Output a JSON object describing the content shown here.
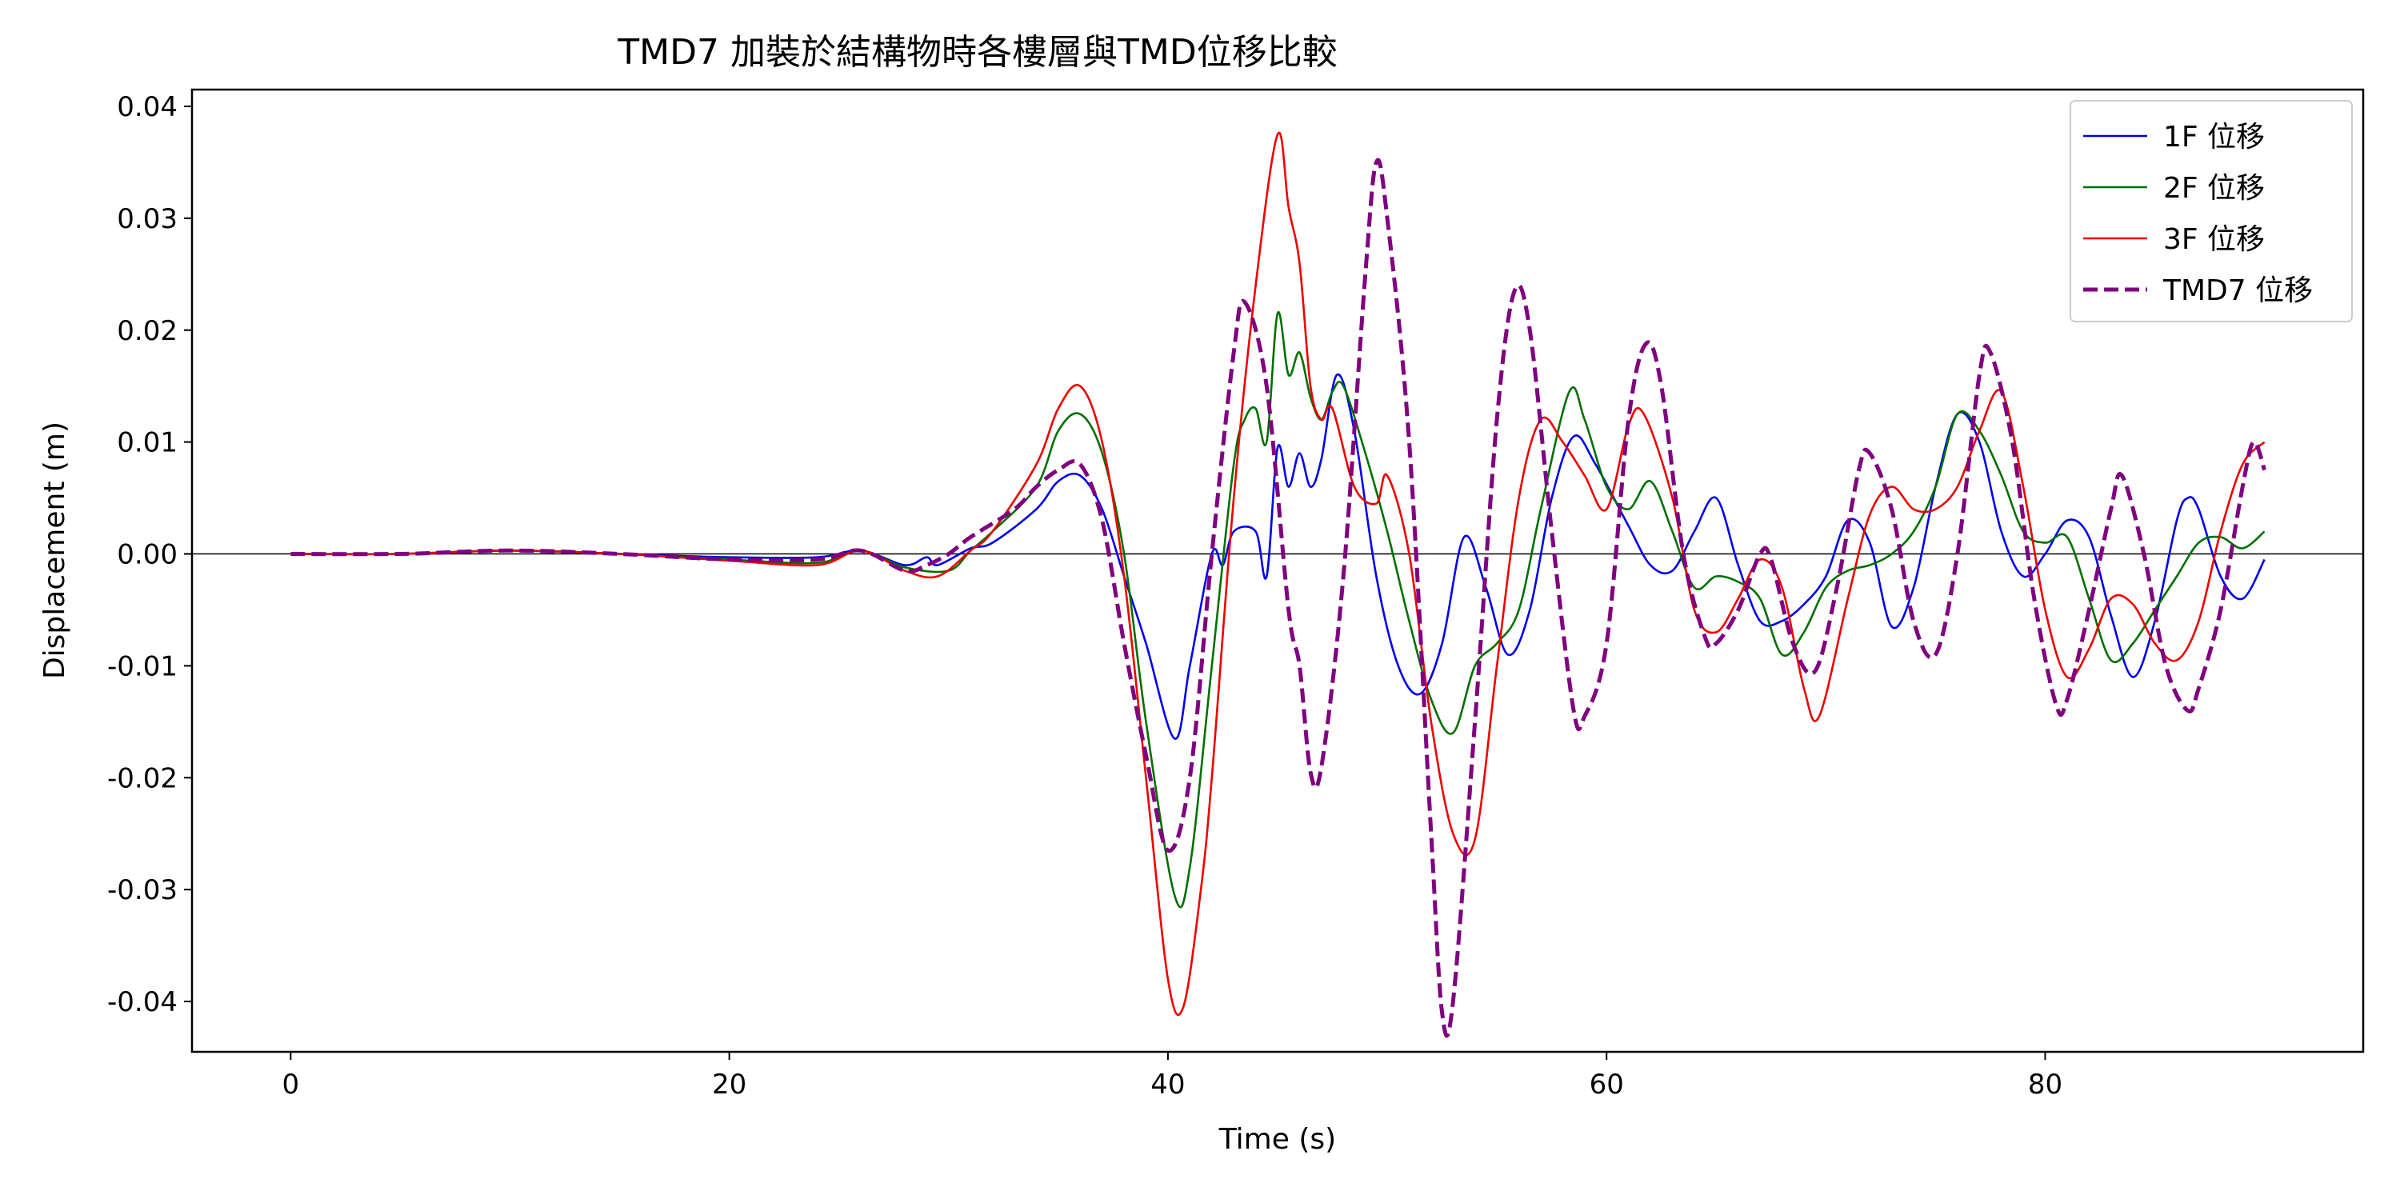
{
  "chart_data": {
    "type": "line",
    "title": "TMD7 加裝於結構物時各樓層與TMD位移比較",
    "xlabel": "Time (s)",
    "ylabel": "Displacement (m)",
    "xlim": [
      -4.5,
      94.5
    ],
    "ylim": [
      -0.0445,
      0.0415
    ],
    "xticks": [
      0,
      20,
      40,
      60,
      80
    ],
    "xtick_labels": [
      "0",
      "20",
      "40",
      "60",
      "80"
    ],
    "yticks": [
      0.04,
      0.03,
      0.02,
      0.01,
      0.0,
      -0.01,
      -0.02,
      -0.03,
      -0.04
    ],
    "ytick_labels": [
      "0.04",
      "0.03",
      "0.02",
      "0.01",
      "0.00",
      "-0.01",
      "-0.02",
      "-0.03",
      "-0.04"
    ],
    "zero_line": true,
    "grid": false,
    "legend_position": "top-right",
    "series": [
      {
        "name": "1F 位移",
        "color": "#0000ee",
        "style": "solid",
        "points": [
          [
            0,
            0
          ],
          [
            5,
            0
          ],
          [
            10,
            0.0003
          ],
          [
            15,
            0
          ],
          [
            20,
            -0.0003
          ],
          [
            24,
            -0.0003
          ],
          [
            26,
            0.0003
          ],
          [
            28,
            -0.001
          ],
          [
            29,
            -0.0003
          ],
          [
            29.5,
            -0.001
          ],
          [
            31,
            0.0005
          ],
          [
            32,
            0.001
          ],
          [
            34,
            0.004
          ],
          [
            35,
            0.0065
          ],
          [
            36,
            0.007
          ],
          [
            37,
            0.004
          ],
          [
            38,
            -0.002
          ],
          [
            39,
            -0.008
          ],
          [
            40.3,
            -0.0165
          ],
          [
            41,
            -0.01
          ],
          [
            42,
            0.0
          ],
          [
            42.5,
            -0.001
          ],
          [
            43,
            0.002
          ],
          [
            44,
            0.002
          ],
          [
            44.5,
            -0.002
          ],
          [
            45,
            0.0095
          ],
          [
            45.5,
            0.006
          ],
          [
            46,
            0.009
          ],
          [
            46.5,
            0.006
          ],
          [
            47,
            0.0085
          ],
          [
            47.7,
            0.016
          ],
          [
            48.5,
            0.011
          ],
          [
            49.5,
            -0.002
          ],
          [
            50.5,
            -0.01
          ],
          [
            51.5,
            -0.0125
          ],
          [
            52.5,
            -0.008
          ],
          [
            53.5,
            0.0015
          ],
          [
            54.5,
            -0.003
          ],
          [
            55.5,
            -0.009
          ],
          [
            56.5,
            -0.005
          ],
          [
            57.5,
            0.005
          ],
          [
            58.5,
            0.0105
          ],
          [
            59.5,
            0.008
          ],
          [
            61,
            0.0025
          ],
          [
            62,
            -0.001
          ],
          [
            63,
            -0.0015
          ],
          [
            64,
            0.002
          ],
          [
            65,
            0.005
          ],
          [
            66,
            -0.001
          ],
          [
            67,
            -0.006
          ],
          [
            68,
            -0.006
          ],
          [
            69,
            -0.0045
          ],
          [
            70,
            -0.002
          ],
          [
            71,
            0.003
          ],
          [
            72,
            0.001
          ],
          [
            73,
            -0.0065
          ],
          [
            74,
            -0.003
          ],
          [
            75,
            0.006
          ],
          [
            76,
            0.0125
          ],
          [
            77,
            0.01
          ],
          [
            78,
            0.002
          ],
          [
            79,
            -0.002
          ],
          [
            80,
            0.0
          ],
          [
            81,
            0.003
          ],
          [
            82,
            0.0015
          ],
          [
            83,
            -0.0055
          ],
          [
            84,
            -0.011
          ],
          [
            85,
            -0.006
          ],
          [
            86,
            0.003
          ],
          [
            86.5,
            0.005
          ],
          [
            87,
            0.004
          ],
          [
            88,
            -0.002
          ],
          [
            89,
            -0.004
          ],
          [
            90,
            -0.0005
          ]
        ]
      },
      {
        "name": "2F 位移",
        "color": "#007000",
        "style": "solid",
        "points": [
          [
            0,
            0
          ],
          [
            5,
            0
          ],
          [
            10,
            0.0003
          ],
          [
            15,
            0
          ],
          [
            20,
            -0.0005
          ],
          [
            24,
            -0.0008
          ],
          [
            26,
            0.0003
          ],
          [
            28,
            -0.0012
          ],
          [
            30,
            -0.0015
          ],
          [
            31,
            0.0003
          ],
          [
            32,
            0.002
          ],
          [
            34,
            0.006
          ],
          [
            35,
            0.011
          ],
          [
            36,
            0.0125
          ],
          [
            37,
            0.009
          ],
          [
            38,
            0.0
          ],
          [
            39,
            -0.015
          ],
          [
            40.3,
            -0.0305
          ],
          [
            41,
            -0.028
          ],
          [
            42,
            -0.01
          ],
          [
            43,
            0.008
          ],
          [
            43.5,
            0.012
          ],
          [
            44,
            0.013
          ],
          [
            44.5,
            0.01
          ],
          [
            45,
            0.0215
          ],
          [
            45.5,
            0.016
          ],
          [
            46,
            0.018
          ],
          [
            46.5,
            0.014
          ],
          [
            47,
            0.012
          ],
          [
            47.5,
            0.0145
          ],
          [
            48,
            0.015
          ],
          [
            49,
            0.009
          ],
          [
            50,
            0.002
          ],
          [
            51,
            -0.006
          ],
          [
            52,
            -0.013
          ],
          [
            53,
            -0.016
          ],
          [
            54,
            -0.01
          ],
          [
            55,
            -0.008
          ],
          [
            56,
            -0.005
          ],
          [
            57,
            0.004
          ],
          [
            58.3,
            0.0145
          ],
          [
            59,
            0.012
          ],
          [
            60,
            0.006
          ],
          [
            61,
            0.004
          ],
          [
            62,
            0.0065
          ],
          [
            63,
            0.002
          ],
          [
            64,
            -0.003
          ],
          [
            65,
            -0.002
          ],
          [
            66,
            -0.0025
          ],
          [
            67,
            -0.004
          ],
          [
            68,
            -0.009
          ],
          [
            69,
            -0.007
          ],
          [
            70,
            -0.003
          ],
          [
            71,
            -0.0015
          ],
          [
            72,
            -0.001
          ],
          [
            73,
            0.0
          ],
          [
            74,
            0.002
          ],
          [
            75,
            0.006
          ],
          [
            76,
            0.0125
          ],
          [
            77,
            0.011
          ],
          [
            78,
            0.007
          ],
          [
            79,
            0.002
          ],
          [
            80,
            0.001
          ],
          [
            81,
            0.0015
          ],
          [
            82,
            -0.004
          ],
          [
            83,
            -0.0095
          ],
          [
            84,
            -0.008
          ],
          [
            85,
            -0.005
          ],
          [
            86,
            -0.002
          ],
          [
            87,
            0.001
          ],
          [
            88,
            0.0015
          ],
          [
            89,
            0.0005
          ],
          [
            90,
            0.002
          ]
        ]
      },
      {
        "name": "3F 位移",
        "color": "#ee0000",
        "style": "solid",
        "points": [
          [
            0,
            0
          ],
          [
            5,
            0
          ],
          [
            10,
            0.0003
          ],
          [
            15,
            0
          ],
          [
            20,
            -0.0006
          ],
          [
            24,
            -0.001
          ],
          [
            26,
            0.0003
          ],
          [
            28,
            -0.0015
          ],
          [
            29.5,
            -0.002
          ],
          [
            31,
            0.0003
          ],
          [
            32,
            0.002
          ],
          [
            34,
            0.008
          ],
          [
            35,
            0.013
          ],
          [
            36,
            0.015
          ],
          [
            37,
            0.01
          ],
          [
            38,
            -0.002
          ],
          [
            39,
            -0.02
          ],
          [
            40,
            -0.038
          ],
          [
            40.7,
            -0.0405
          ],
          [
            41.5,
            -0.03
          ],
          [
            42,
            -0.02
          ],
          [
            43,
            0.005
          ],
          [
            44,
            0.024
          ],
          [
            45,
            0.0375
          ],
          [
            45.5,
            0.031
          ],
          [
            46,
            0.026
          ],
          [
            46.5,
            0.015
          ],
          [
            47,
            0.012
          ],
          [
            47.5,
            0.013
          ],
          [
            48.5,
            0.006
          ],
          [
            49.5,
            0.0045
          ],
          [
            50,
            0.007
          ],
          [
            51,
            0.0
          ],
          [
            52,
            -0.015
          ],
          [
            53,
            -0.025
          ],
          [
            54,
            -0.0255
          ],
          [
            55,
            -0.01
          ],
          [
            56,
            0.005
          ],
          [
            57,
            0.012
          ],
          [
            58,
            0.01
          ],
          [
            59,
            0.007
          ],
          [
            60,
            0.004
          ],
          [
            61,
            0.0115
          ],
          [
            61.7,
            0.0125
          ],
          [
            63,
            0.005
          ],
          [
            64,
            -0.005
          ],
          [
            65,
            -0.007
          ],
          [
            66,
            -0.004
          ],
          [
            67,
            -0.0005
          ],
          [
            68,
            -0.003
          ],
          [
            69,
            -0.012
          ],
          [
            69.7,
            -0.0145
          ],
          [
            71,
            -0.004
          ],
          [
            72,
            0.0035
          ],
          [
            73,
            0.006
          ],
          [
            74,
            0.004
          ],
          [
            75,
            0.004
          ],
          [
            76,
            0.006
          ],
          [
            77,
            0.011
          ],
          [
            78,
            0.0145
          ],
          [
            79,
            0.006
          ],
          [
            80,
            -0.005
          ],
          [
            81,
            -0.011
          ],
          [
            82,
            -0.0085
          ],
          [
            83,
            -0.004
          ],
          [
            84,
            -0.0045
          ],
          [
            85,
            -0.008
          ],
          [
            86,
            -0.0095
          ],
          [
            87,
            -0.006
          ],
          [
            88,
            0.002
          ],
          [
            89,
            0.008
          ],
          [
            90,
            0.01
          ]
        ]
      },
      {
        "name": "TMD7 位移",
        "color": "#800080",
        "style": "dashed",
        "points": [
          [
            0,
            0
          ],
          [
            5,
            0
          ],
          [
            10,
            0.0003
          ],
          [
            15,
            0
          ],
          [
            20,
            -0.0005
          ],
          [
            24,
            -0.0005
          ],
          [
            26,
            0.0003
          ],
          [
            28,
            -0.0015
          ],
          [
            29,
            -0.001
          ],
          [
            30,
            0.0
          ],
          [
            31,
            0.0015
          ],
          [
            33,
            0.004
          ],
          [
            34,
            0.006
          ],
          [
            35,
            0.0075
          ],
          [
            36,
            0.008
          ],
          [
            37,
            0.003
          ],
          [
            38,
            -0.008
          ],
          [
            39,
            -0.018
          ],
          [
            40,
            -0.0265
          ],
          [
            41,
            -0.02
          ],
          [
            42,
            0.0
          ],
          [
            43,
            0.018
          ],
          [
            43.5,
            0.0225
          ],
          [
            44.5,
            0.015
          ],
          [
            45.5,
            -0.005
          ],
          [
            46,
            -0.01
          ],
          [
            46.5,
            -0.0195
          ],
          [
            47,
            -0.019
          ],
          [
            48,
            -0.002
          ],
          [
            49,
            0.025
          ],
          [
            49.5,
            0.035
          ],
          [
            50,
            0.03
          ],
          [
            51,
            0.01
          ],
          [
            52,
            -0.025
          ],
          [
            52.5,
            -0.041
          ],
          [
            53,
            -0.04
          ],
          [
            54,
            -0.015
          ],
          [
            55,
            0.012
          ],
          [
            55.8,
            0.0235
          ],
          [
            56.5,
            0.02
          ],
          [
            57.5,
            0.002
          ],
          [
            58.5,
            -0.014
          ],
          [
            59,
            -0.0145
          ],
          [
            60,
            -0.008
          ],
          [
            61,
            0.012
          ],
          [
            61.8,
            0.0188
          ],
          [
            62.5,
            0.015
          ],
          [
            63.5,
            0.0
          ],
          [
            64.5,
            -0.0075
          ],
          [
            65,
            -0.008
          ],
          [
            66,
            -0.005
          ],
          [
            67,
            0.0
          ],
          [
            67.5,
            -0.0005
          ],
          [
            68.5,
            -0.008
          ],
          [
            69.5,
            -0.0105
          ],
          [
            70.5,
            -0.003
          ],
          [
            71.5,
            0.0075
          ],
          [
            72,
            0.009
          ],
          [
            73,
            0.004
          ],
          [
            74,
            -0.006
          ],
          [
            75,
            -0.009
          ],
          [
            76,
            0.0
          ],
          [
            77,
            0.016
          ],
          [
            77.5,
            0.018
          ],
          [
            78.5,
            0.01
          ],
          [
            79.5,
            -0.004
          ],
          [
            80.5,
            -0.0135
          ],
          [
            81,
            -0.013
          ],
          [
            82,
            -0.005
          ],
          [
            83,
            0.004
          ],
          [
            83.5,
            0.007
          ],
          [
            84.5,
            0.0
          ],
          [
            85.5,
            -0.01
          ],
          [
            86.5,
            -0.014
          ],
          [
            87,
            -0.012
          ],
          [
            88,
            -0.005
          ],
          [
            89,
            0.006
          ],
          [
            89.5,
            0.01
          ],
          [
            90,
            0.0075
          ]
        ]
      }
    ]
  }
}
